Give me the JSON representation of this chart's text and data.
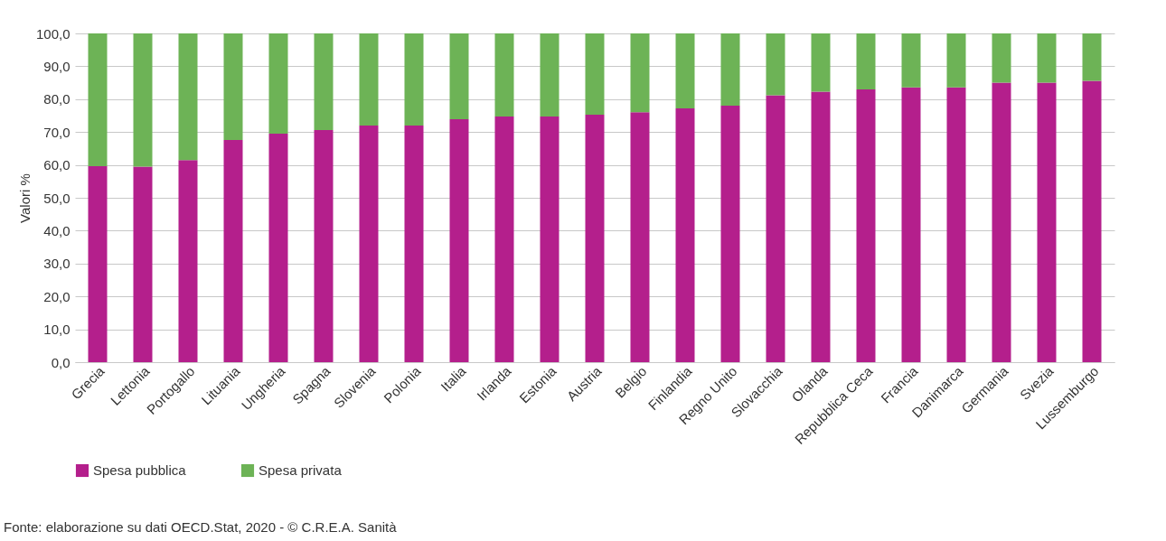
{
  "chart_data": {
    "type": "bar",
    "stacked": true,
    "ylabel": "Valori %",
    "categories": [
      "Grecia",
      "Lettonia",
      "Portogallo",
      "Lituania",
      "Ungheria",
      "Spagna",
      "Slovenia",
      "Polonia",
      "Italia",
      "Irlanda",
      "Estonia",
      "Austria",
      "Belgio",
      "Finlandia",
      "Regno Unito",
      "Slovacchia",
      "Olanda",
      "Repubblica Ceca",
      "Francia",
      "Danimarca",
      "Germania",
      "Svezia",
      "Lussemburgo"
    ],
    "series": [
      {
        "name": "Spesa pubblica",
        "color": "#b41f8c",
        "values": [
          59.6,
          59.5,
          61.5,
          67.6,
          69.5,
          70.6,
          72.0,
          72.0,
          73.9,
          74.7,
          74.7,
          75.3,
          76.0,
          77.2,
          78.0,
          81.2,
          82.3,
          83.0,
          83.6,
          83.6,
          85.0,
          85.0,
          85.6
        ]
      },
      {
        "name": "Spesa privata",
        "color": "#6db356",
        "values": [
          40.4,
          40.5,
          38.5,
          32.4,
          30.5,
          29.4,
          28.0,
          28.0,
          26.1,
          25.3,
          25.3,
          24.7,
          24.0,
          22.8,
          22.0,
          18.8,
          17.7,
          17.0,
          16.4,
          16.4,
          15.0,
          15.0,
          14.4
        ]
      }
    ],
    "ylim": [
      0,
      100
    ],
    "yticks": [
      {
        "value": 0,
        "label": "0,0"
      },
      {
        "value": 10,
        "label": "10,0"
      },
      {
        "value": 20,
        "label": "20,0"
      },
      {
        "value": 30,
        "label": "30,0"
      },
      {
        "value": 40,
        "label": "40,0"
      },
      {
        "value": 50,
        "label": "50,0"
      },
      {
        "value": 60,
        "label": "60,0"
      },
      {
        "value": 70,
        "label": "70,0"
      },
      {
        "value": 80,
        "label": "80,0"
      },
      {
        "value": 90,
        "label": "90,0"
      },
      {
        "value": 100,
        "label": "100,0"
      }
    ],
    "grid": "y",
    "legend": "bottom",
    "annotations": [
      "Fonte: elaborazione su dati OECD.Stat, 2020 - © C.R.E.A. Sanità"
    ]
  }
}
